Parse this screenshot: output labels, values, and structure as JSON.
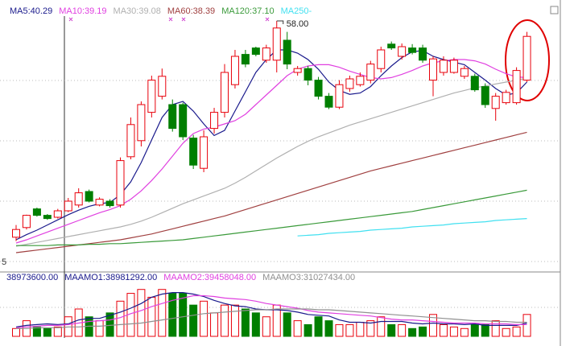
{
  "chart_data": [
    {
      "type": "candlestick",
      "ylim": [
        20,
        60
      ],
      "up_color": "#e8000b",
      "down_color": "#007f00",
      "open": [
        24.4,
        25.9,
        28.8,
        27.8,
        27.5,
        28.5,
        29.4,
        31.5,
        29.4,
        30.0,
        29.4,
        36.9,
        39.4,
        43.8,
        46.3,
        45.0,
        45.0,
        39.8,
        35.1,
        41.3,
        43.8,
        48.1,
        52.8,
        53.8,
        51.9,
        51.9,
        55.0,
        50.0,
        50.6,
        48.8,
        46.3,
        44.6,
        47.5,
        48.1,
        48.8,
        50.6,
        54.4,
        52.5,
        53.8,
        53.8,
        48.8,
        50.0,
        50.0,
        49.4,
        49.4,
        47.8,
        44.4,
        45.3,
        45.3,
        48.8
      ],
      "close": [
        25.6,
        27.8,
        27.8,
        27.3,
        28.5,
        30.0,
        31.3,
        30.0,
        30.3,
        29.3,
        36.3,
        41.9,
        45.0,
        48.8,
        49.4,
        41.3,
        40.0,
        35.6,
        40.0,
        43.8,
        50.0,
        52.5,
        51.3,
        52.8,
        53.8,
        56.9,
        51.3,
        50.6,
        48.8,
        46.3,
        44.6,
        48.1,
        49.0,
        49.4,
        51.3,
        53.5,
        53.8,
        54.0,
        53.1,
        51.9,
        52.1,
        51.9,
        51.9,
        50.6,
        47.3,
        45.0,
        46.3,
        46.9,
        50.3,
        55.6
      ],
      "high": [
        26.3,
        27.9,
        29.0,
        28.0,
        28.8,
        30.5,
        32.0,
        31.8,
        30.6,
        30.3,
        36.8,
        43.0,
        45.5,
        49.5,
        50.6,
        45.8,
        45.3,
        40.3,
        41.0,
        44.5,
        51.3,
        53.5,
        53.5,
        54.0,
        54.3,
        58.0,
        56.3,
        51.0,
        51.0,
        49.3,
        46.8,
        48.8,
        49.5,
        50.0,
        51.8,
        54.0,
        54.8,
        54.5,
        54.4,
        54.3,
        52.5,
        52.5,
        52.3,
        51.0,
        49.8,
        48.3,
        46.8,
        47.3,
        50.8,
        56.3
      ],
      "low": [
        23.8,
        25.6,
        27.6,
        27.1,
        27.3,
        28.3,
        29.0,
        29.8,
        29.2,
        29.0,
        29.0,
        36.5,
        38.5,
        43.0,
        45.8,
        40.8,
        39.5,
        35.0,
        34.5,
        40.5,
        43.0,
        47.5,
        50.8,
        52.5,
        51.5,
        50.0,
        50.5,
        49.5,
        48.0,
        45.8,
        44.3,
        44.3,
        47.0,
        47.8,
        48.3,
        50.0,
        53.5,
        52.0,
        52.8,
        51.5,
        46.3,
        49.5,
        49.8,
        49.0,
        47.0,
        44.5,
        42.5,
        45.0,
        45.0,
        48.5
      ],
      "annotations": [
        {
          "text": "58.00",
          "value": 58.0
        }
      ],
      "corner_label": "5",
      "series": [
        {
          "name": "MA5:40.29",
          "color": "#1a1a8c",
          "values": [
            24.0,
            24.8,
            25.5,
            26.3,
            27.1,
            27.9,
            28.6,
            29.2,
            29.6,
            29.8,
            31.0,
            33.0,
            36.0,
            39.5,
            43.0,
            45.0,
            45.5,
            44.0,
            42.0,
            40.2,
            41.0,
            44.0,
            47.0,
            50.0,
            52.0,
            53.5,
            53.5,
            53.0,
            52.0,
            50.5,
            48.5,
            47.2,
            46.6,
            46.8,
            47.8,
            49.5,
            51.0,
            52.3,
            53.2,
            53.4,
            52.5,
            52.0,
            51.6,
            51.2,
            50.0,
            48.8,
            47.5,
            46.5,
            46.8,
            48.5
          ]
        },
        {
          "name": "MA10:39.19",
          "color": "#e040e0",
          "values": [
            23.5,
            24.0,
            24.6,
            25.2,
            25.8,
            26.4,
            27.0,
            27.6,
            28.2,
            28.7,
            29.3,
            30.3,
            31.6,
            33.2,
            35.0,
            37.0,
            39.0,
            40.5,
            41.2,
            41.5,
            42.0,
            42.5,
            43.5,
            45.0,
            46.5,
            48.0,
            49.5,
            50.5,
            51.0,
            51.2,
            51.2,
            50.8,
            50.2,
            49.7,
            49.2,
            49.0,
            49.2,
            49.7,
            50.3,
            51.0,
            51.5,
            51.8,
            52.0,
            52.0,
            51.8,
            51.3,
            50.5,
            49.8,
            49.3,
            49.2
          ]
        },
        {
          "name": "MA30:39.08",
          "color": "#b0b0b0",
          "values": [
            23.0,
            23.3,
            23.6,
            23.9,
            24.2,
            24.5,
            24.8,
            25.1,
            25.4,
            25.7,
            26.0,
            26.4,
            26.9,
            27.5,
            28.2,
            28.9,
            29.6,
            30.2,
            30.8,
            31.4,
            32.0,
            32.8,
            33.7,
            34.7,
            35.7,
            36.7,
            37.6,
            38.5,
            39.3,
            40.0,
            40.6,
            41.2,
            41.8,
            42.3,
            42.8,
            43.3,
            43.8,
            44.3,
            44.8,
            45.3,
            45.8,
            46.3,
            46.8,
            47.2,
            47.6,
            47.9,
            48.2,
            48.5,
            48.8,
            49.1
          ]
        },
        {
          "name": "MA60:38.39",
          "color": "#a04040",
          "values": [
            22.0,
            22.2,
            22.4,
            22.6,
            22.8,
            23.0,
            23.2,
            23.4,
            23.6,
            23.8,
            24.0,
            24.3,
            24.6,
            24.9,
            25.3,
            25.7,
            26.1,
            26.5,
            26.9,
            27.3,
            27.7,
            28.2,
            28.7,
            29.2,
            29.7,
            30.2,
            30.7,
            31.2,
            31.7,
            32.2,
            32.7,
            33.2,
            33.7,
            34.2,
            34.7,
            35.1,
            35.5,
            35.9,
            36.3,
            36.7,
            37.1,
            37.5,
            37.9,
            38.3,
            38.7,
            39.1,
            39.5,
            39.9,
            40.3,
            40.7
          ]
        },
        {
          "name": "MA120:37.10",
          "color": "#3a9a3a",
          "values": [
            23.1,
            23.1,
            23.1,
            23.1,
            23.2,
            23.2,
            23.2,
            23.3,
            23.3,
            23.4,
            23.4,
            23.5,
            23.6,
            23.7,
            23.8,
            23.9,
            24.0,
            24.2,
            24.4,
            24.6,
            24.8,
            25.0,
            25.2,
            25.4,
            25.6,
            25.8,
            26.0,
            26.2,
            26.4,
            26.6,
            26.8,
            27.0,
            27.2,
            27.4,
            27.6,
            27.8,
            28.0,
            28.2,
            28.4,
            28.7,
            29.0,
            29.3,
            29.6,
            29.9,
            30.2,
            30.5,
            30.8,
            31.1,
            31.4,
            31.7
          ]
        },
        {
          "name": "MA250-",
          "color": "#40e0f0",
          "values": [
            null,
            null,
            null,
            null,
            null,
            null,
            null,
            null,
            null,
            null,
            null,
            null,
            null,
            null,
            null,
            null,
            null,
            null,
            null,
            null,
            null,
            null,
            null,
            null,
            null,
            null,
            null,
            24.6,
            24.7,
            24.8,
            25.0,
            25.1,
            25.2,
            25.3,
            25.5,
            25.6,
            25.7,
            25.8,
            26.0,
            26.1,
            26.2,
            26.3,
            26.5,
            26.6,
            26.7,
            26.8,
            27.0,
            27.1,
            27.2,
            27.3
          ]
        }
      ]
    },
    {
      "type": "bar",
      "ylim": [
        0,
        70000000
      ],
      "current_label": "38973600.00",
      "values": [
        10000000,
        20000000,
        12000000,
        10000000,
        12000000,
        25000000,
        35000000,
        25000000,
        20000000,
        30000000,
        45000000,
        55000000,
        60000000,
        50000000,
        60000000,
        55000000,
        55000000,
        40000000,
        45000000,
        30000000,
        40000000,
        40000000,
        35000000,
        30000000,
        25000000,
        40000000,
        30000000,
        20000000,
        15000000,
        25000000,
        20000000,
        15000000,
        15000000,
        18000000,
        20000000,
        25000000,
        15000000,
        15000000,
        10000000,
        12000000,
        28000000,
        15000000,
        12000000,
        10000000,
        15000000,
        15000000,
        20000000,
        10000000,
        12000000,
        28000000
      ],
      "series": [
        {
          "name": "MAAMO1:38981292.00",
          "color": "#1a1a8c",
          "values": [
            12000000,
            14000000,
            15000000,
            16000000,
            15000000,
            16000000,
            21000000,
            23000000,
            23000000,
            27000000,
            31000000,
            36000000,
            42000000,
            50000000,
            54000000,
            56000000,
            56000000,
            54000000,
            51000000,
            46000000,
            42000000,
            39000000,
            38000000,
            35000000,
            34000000,
            34000000,
            33000000,
            31000000,
            28000000,
            27000000,
            26000000,
            21000000,
            18000000,
            18000000,
            17000000,
            19000000,
            19000000,
            19000000,
            17000000,
            16000000,
            17000000,
            16000000,
            16000000,
            15000000,
            16000000,
            14000000,
            14000000,
            14000000,
            14000000,
            17000000
          ]
        },
        {
          "name": "MAAMO2:39458048.00",
          "color": "#e040e0",
          "values": [
            11000000,
            12000000,
            13000000,
            14000000,
            14000000,
            15000000,
            17000000,
            19000000,
            20000000,
            21000000,
            24000000,
            29000000,
            33000000,
            38000000,
            42000000,
            46000000,
            49000000,
            52000000,
            52000000,
            51000000,
            49000000,
            48000000,
            47000000,
            45000000,
            42000000,
            40000000,
            38000000,
            36000000,
            33000000,
            31000000,
            30000000,
            29000000,
            28000000,
            27000000,
            26000000,
            24000000,
            22000000,
            21000000,
            21000000,
            20000000,
            19000000,
            18000000,
            17000000,
            17000000,
            17000000,
            16000000,
            16000000,
            16000000,
            15000000,
            15000000
          ]
        },
        {
          "name": "MAAMO3:31027434.00",
          "color": "#909090",
          "values": [
            10000000,
            10000000,
            11000000,
            11000000,
            11000000,
            12000000,
            12000000,
            13000000,
            13000000,
            14000000,
            15000000,
            16000000,
            17000000,
            19000000,
            21000000,
            23000000,
            25000000,
            27000000,
            29000000,
            30000000,
            31000000,
            32000000,
            33000000,
            34000000,
            34000000,
            35000000,
            35000000,
            35000000,
            35000000,
            34000000,
            34000000,
            33000000,
            32000000,
            31000000,
            30000000,
            29000000,
            28000000,
            27000000,
            26000000,
            25000000,
            24000000,
            23000000,
            22000000,
            21000000,
            20000000,
            20000000,
            19000000,
            19000000,
            18000000,
            18000000
          ]
        }
      ]
    }
  ]
}
